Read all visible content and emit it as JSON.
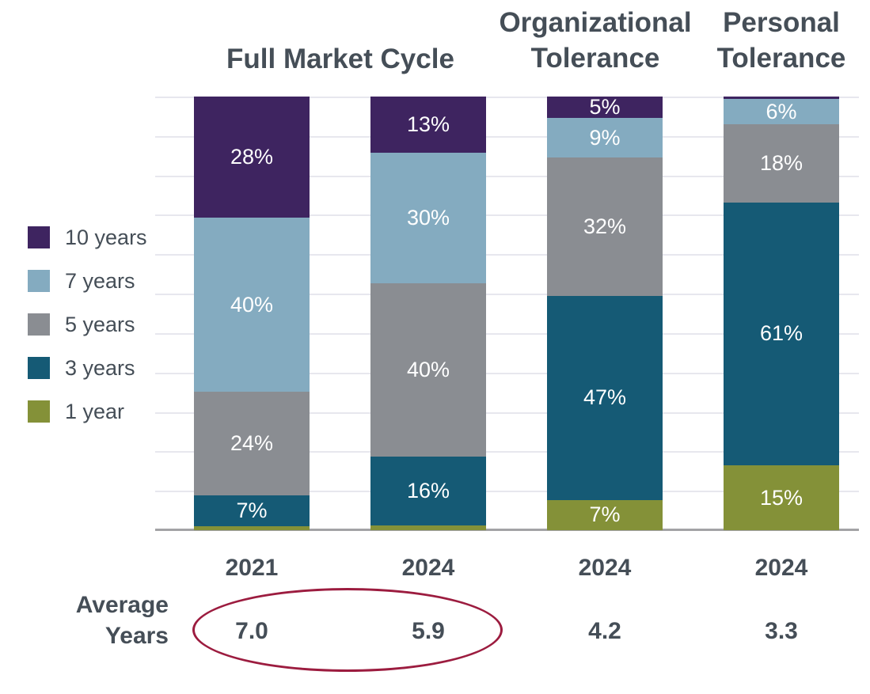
{
  "colors": {
    "background": "#ffffff",
    "heading_text": "#454e57",
    "segment_label_text": "#ffffff",
    "gridline": "#e7e7ee",
    "axis_line": "#a3a3a6",
    "highlight_ellipse": "#9c1c3f",
    "series_10_years": "#3e2460",
    "series_7_years": "#84abc0",
    "series_5_years": "#8a8d92",
    "series_3_years": "#155a75",
    "series_1_year": "#849138"
  },
  "legend": {
    "items": [
      {
        "label": "10 years",
        "color": "#3e2460"
      },
      {
        "label": "7 years",
        "color": "#84abc0"
      },
      {
        "label": "5 years",
        "color": "#8a8d92"
      },
      {
        "label": "3 years",
        "color": "#155a75"
      },
      {
        "label": "1 year",
        "color": "#849138"
      }
    ]
  },
  "average_row": {
    "line1": "Average",
    "line2": "Years"
  },
  "chart_data": {
    "type": "bar",
    "stacked": true,
    "value_unit": "percent",
    "ylim": [
      0,
      100
    ],
    "grid": true,
    "legend_position": "left",
    "group_titles": [
      "Full Market Cycle",
      "Organizational Tolerance",
      "Personal Tolerance"
    ],
    "categories": [
      "2021",
      "2024",
      "2024",
      "2024"
    ],
    "category_groups": [
      "Full Market Cycle",
      "Full Market Cycle",
      "Organizational Tolerance",
      "Personal Tolerance"
    ],
    "average_years": [
      "7.0",
      "5.9",
      "4.2",
      "3.3"
    ],
    "highlight": {
      "shape": "ellipse",
      "color": "#9c1c3f",
      "around_categories": [
        "2021",
        "2024"
      ],
      "around_values": [
        "7.0",
        "5.9"
      ]
    },
    "series": [
      {
        "name": "10 years",
        "color": "#3e2460",
        "values": [
          28,
          13,
          5,
          0.5
        ],
        "labels": [
          "28%",
          "13%",
          "5%",
          ""
        ]
      },
      {
        "name": "7 years",
        "color": "#84abc0",
        "values": [
          40,
          30,
          9,
          6
        ],
        "labels": [
          "40%",
          "30%",
          "9%",
          "6%"
        ]
      },
      {
        "name": "5 years",
        "color": "#8a8d92",
        "values": [
          24,
          40,
          32,
          18
        ],
        "labels": [
          "24%",
          "40%",
          "32%",
          "18%"
        ]
      },
      {
        "name": "3 years",
        "color": "#155a75",
        "values": [
          7,
          16,
          47,
          61
        ],
        "labels": [
          "7%",
          "16%",
          "47%",
          "61%"
        ]
      },
      {
        "name": "1 year",
        "color": "#849138",
        "values": [
          1,
          1,
          7,
          15
        ],
        "labels": [
          "",
          "",
          "7%",
          "15%"
        ]
      }
    ]
  }
}
